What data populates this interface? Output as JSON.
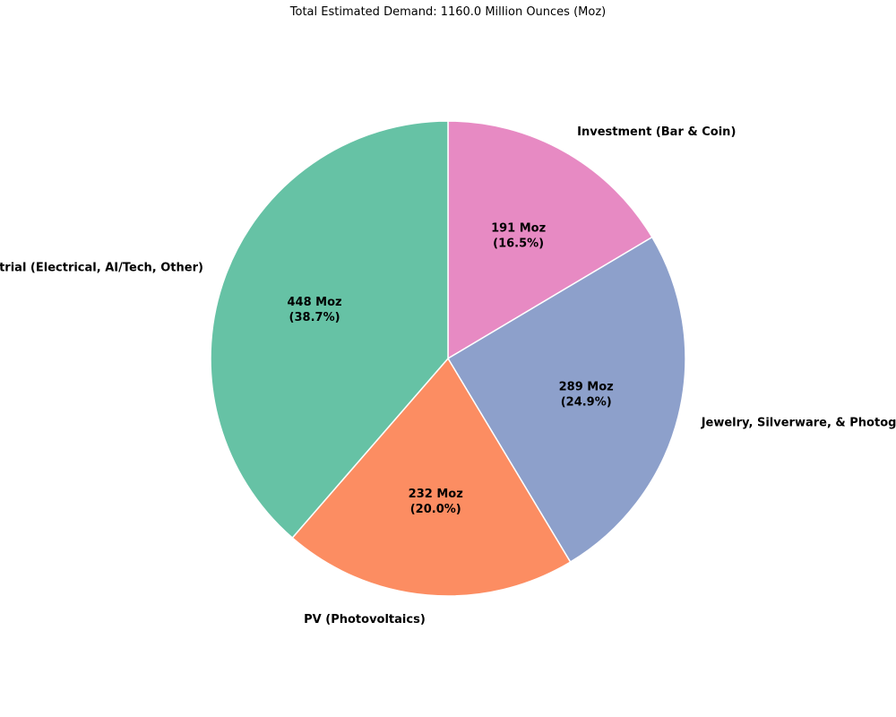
{
  "chart_data": {
    "type": "pie",
    "title": "Total Estimated Demand: 1160.0 Million Ounces (Moz)",
    "start_angle_deg": 90,
    "direction": "clockwise",
    "slices": [
      {
        "label": "Investment (Bar & Coin)",
        "value": 191,
        "value_label": "191 Moz",
        "pct_label": "(16.5%)",
        "color": "#e78ac3"
      },
      {
        "label": "Jewelry, Silverware, & Photography",
        "value": 289,
        "value_label": "289 Moz",
        "pct_label": "(24.9%)",
        "color": "#8da0cb"
      },
      {
        "label": "PV (Photovoltaics)",
        "value": 232,
        "value_label": "232 Moz",
        "pct_label": "(20.0%)",
        "color": "#fc8d62"
      },
      {
        "label": "Industrial (Electrical, AI/Tech, Other)",
        "value": 448,
        "value_label": "448 Moz",
        "pct_label": "(38.7%)",
        "color": "#66c2a5"
      }
    ],
    "wedge_edge_color": "#ffffff"
  }
}
